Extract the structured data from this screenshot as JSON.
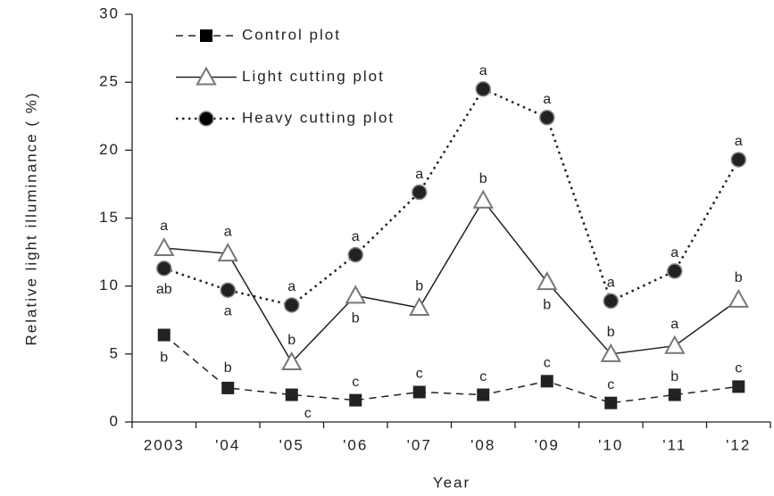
{
  "chart_data": {
    "type": "line",
    "x_label": "Year",
    "y_label": "Relative light illuminance ( %)",
    "categories": [
      "2003",
      "'04",
      "'05",
      "'06",
      "'07",
      "'08",
      "'09",
      "'10",
      "'11",
      "'12"
    ],
    "ylim": [
      0,
      30
    ],
    "yticks": [
      0,
      5,
      10,
      15,
      20,
      25,
      30
    ],
    "legend": "top-left",
    "series": [
      {
        "name": "Control plot",
        "color": "#222222",
        "marker": "square",
        "dash": "dashed",
        "values": [
          6.4,
          2.5,
          2.0,
          1.6,
          2.2,
          2.0,
          3.0,
          1.4,
          2.0,
          2.6
        ],
        "letters": [
          "b",
          "b",
          "c",
          "c",
          "c",
          "c",
          "c",
          "c",
          "b",
          "c"
        ]
      },
      {
        "name": "Light cutting plot",
        "color": "#222222",
        "marker": "triangle",
        "dash": "solid",
        "values": [
          12.8,
          12.4,
          4.4,
          9.3,
          8.4,
          16.3,
          10.3,
          5.0,
          5.6,
          9.0
        ],
        "letters": [
          "a",
          "a",
          "b",
          "b",
          "b",
          "b",
          "b",
          "b",
          "a",
          "b"
        ]
      },
      {
        "name": "Heavy cutting plot",
        "color": "#222222",
        "marker": "circle",
        "dash": "dotted",
        "values": [
          11.3,
          9.7,
          8.6,
          12.3,
          16.9,
          24.5,
          22.4,
          8.9,
          11.1,
          19.3
        ],
        "letters": [
          "ab",
          "a",
          "a",
          "a",
          "a",
          "a",
          "a",
          "a",
          "a",
          "a"
        ]
      }
    ]
  }
}
